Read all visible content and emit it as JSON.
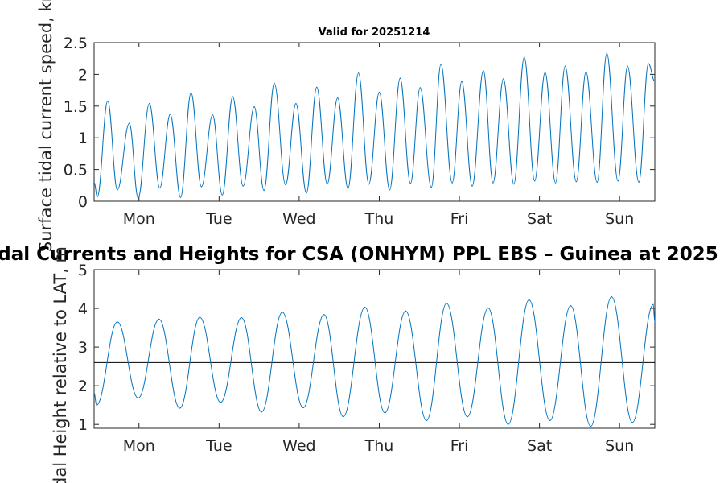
{
  "chart_data": [
    {
      "type": "line",
      "title": "Valid for 20251214",
      "xlabel": "",
      "ylabel": "Surface tidal current speed, kn",
      "x_range_days": [
        0,
        7
      ],
      "ylim": [
        0,
        2.5
      ],
      "yticks": [
        0,
        0.5,
        1,
        1.5,
        2,
        2.5
      ],
      "ytick_labels": [
        "0",
        "0.5",
        "1",
        "1.5",
        "2",
        "2.5"
      ],
      "xticks": [
        0.56,
        1.56,
        2.56,
        3.56,
        4.56,
        5.56,
        6.56
      ],
      "xtick_labels": [
        "Mon",
        "Tue",
        "Wed",
        "Thu",
        "Fri",
        "Sat",
        "Sun"
      ],
      "grid": false,
      "line_color": "#0072bd",
      "series": [
        {
          "x": [
            0.04,
            0.17,
            0.29,
            0.44,
            0.55,
            0.69,
            0.82,
            0.95,
            1.08,
            1.21,
            1.34,
            1.48,
            1.6,
            1.73,
            1.86,
            2.0,
            2.12,
            2.25,
            2.39,
            2.52,
            2.65,
            2.78,
            2.91,
            3.04,
            3.17,
            3.3,
            3.43,
            3.56,
            3.69,
            3.82,
            3.95,
            4.07,
            4.21,
            4.33,
            4.47,
            4.59,
            4.72,
            4.86,
            4.98,
            5.11,
            5.24,
            5.37,
            5.5,
            5.63,
            5.76,
            5.88,
            6.02,
            6.14,
            6.28,
            6.4,
            6.54,
            6.66,
            6.8,
            6.92
          ],
          "y": [
            0.07,
            1.58,
            0.18,
            1.23,
            0.05,
            1.54,
            0.21,
            1.37,
            0.06,
            1.71,
            0.23,
            1.36,
            0.1,
            1.65,
            0.24,
            1.49,
            0.17,
            1.86,
            0.26,
            1.54,
            0.13,
            1.8,
            0.27,
            1.63,
            0.2,
            2.02,
            0.27,
            1.72,
            0.18,
            1.94,
            0.28,
            1.79,
            0.22,
            2.16,
            0.29,
            1.89,
            0.24,
            2.06,
            0.29,
            1.93,
            0.27,
            2.27,
            0.32,
            2.03,
            0.29,
            2.13,
            0.31,
            2.04,
            0.3,
            2.33,
            0.32,
            2.13,
            0.3,
            2.17
          ]
        }
      ]
    },
    {
      "type": "line",
      "title": "dal Currents and Heights for CSA (ONHYM) PPL EBS  – Guinea at 2025",
      "xlabel": "",
      "ylabel": "Tidal Height relative to LAT, m",
      "x_range_days": [
        0,
        7
      ],
      "ylim": [
        0.9,
        5
      ],
      "yticks": [
        1,
        2,
        3,
        4,
        5
      ],
      "ytick_labels": [
        "1",
        "2",
        "3",
        "4",
        "5"
      ],
      "xticks": [
        0.56,
        1.56,
        2.56,
        3.56,
        4.56,
        5.56,
        6.56
      ],
      "xtick_labels": [
        "Mon",
        "Tue",
        "Wed",
        "Thu",
        "Fri",
        "Sat",
        "Sun"
      ],
      "grid": false,
      "line_color": "#0072bd",
      "reference_line": {
        "y": 2.6,
        "color": "#000000"
      },
      "series": [
        {
          "x": [
            0.03,
            0.29,
            0.55,
            0.81,
            1.07,
            1.32,
            1.58,
            1.84,
            2.09,
            2.35,
            2.61,
            2.87,
            3.11,
            3.38,
            3.63,
            3.89,
            4.15,
            4.4,
            4.66,
            4.92,
            5.17,
            5.43,
            5.69,
            5.95,
            6.2,
            6.46,
            6.72,
            6.98
          ],
          "y": [
            1.5,
            3.65,
            1.68,
            3.72,
            1.42,
            3.77,
            1.57,
            3.76,
            1.32,
            3.9,
            1.43,
            3.84,
            1.2,
            4.03,
            1.3,
            3.93,
            1.1,
            4.13,
            1.2,
            4.01,
            1.0,
            4.22,
            1.1,
            4.07,
            0.95,
            4.3,
            1.05,
            4.1
          ]
        }
      ]
    }
  ]
}
